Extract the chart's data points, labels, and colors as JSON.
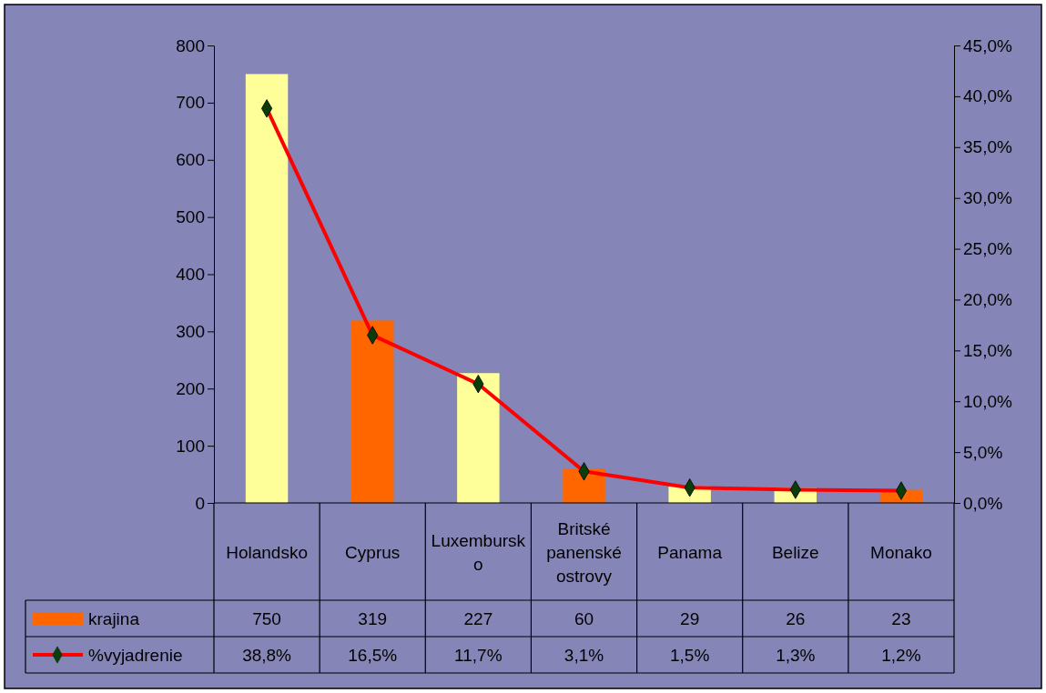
{
  "chart_data": {
    "type": "bar",
    "categories": [
      "Holandsko",
      "Cyprus",
      "Luxembursko",
      "Britské panenské ostrovy",
      "Panama",
      "Belize",
      "Monako"
    ],
    "series": [
      {
        "name": "krajina",
        "colors": [
          "#ffff99",
          "#ff6600",
          "#ffff99",
          "#ff6600",
          "#ffff99",
          "#ffff99",
          "#ff6600"
        ],
        "color": "#ff6600",
        "values": [
          750,
          319,
          227,
          60,
          29,
          26,
          23
        ],
        "value_labels": [
          "750",
          "319",
          "227",
          "60",
          "29",
          "26",
          "23"
        ]
      },
      {
        "name": "%vyjadrenie",
        "type": "line",
        "axis": "y2",
        "color": "#ff0000",
        "marker": "diamond",
        "values": [
          38.8,
          16.5,
          11.7,
          3.1,
          1.5,
          1.3,
          1.2
        ],
        "value_labels": [
          "38,8%",
          "16,5%",
          "11,7%",
          "3,1%",
          "1,5%",
          "1,3%",
          "1,2%"
        ]
      }
    ],
    "ylim": [
      0,
      800
    ],
    "yticks": [
      0,
      100,
      200,
      300,
      400,
      500,
      600,
      700,
      800
    ],
    "y2lim": [
      0,
      45
    ],
    "y2ticks": [
      {
        "value": 0,
        "label": "0,0%"
      },
      {
        "value": 5,
        "label": "5,0%"
      },
      {
        "value": 10,
        "label": "10,0%"
      },
      {
        "value": 15,
        "label": "15,0%"
      },
      {
        "value": 20,
        "label": "20,0%"
      },
      {
        "value": 25,
        "label": "25,0%"
      },
      {
        "value": 30,
        "label": "30,0%"
      },
      {
        "value": 35,
        "label": "35,0%"
      },
      {
        "value": 40,
        "label": "40,0%"
      },
      {
        "value": 45,
        "label": "45,0%"
      }
    ],
    "legend": "bottom"
  }
}
